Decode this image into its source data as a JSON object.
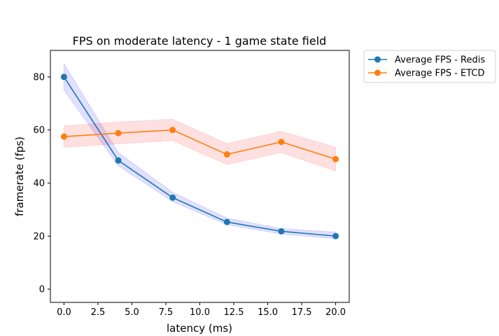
{
  "chart_data": {
    "type": "line",
    "title": "FPS on moderate latency - 1 game state field",
    "xlabel": "latency (ms)",
    "ylabel": "framerate (fps)",
    "xlim": [
      -1,
      21
    ],
    "ylim": [
      -5,
      90
    ],
    "xticks": [
      0.0,
      2.5,
      5.0,
      7.5,
      10.0,
      12.5,
      15.0,
      17.5,
      20.0
    ],
    "xtick_labels": [
      "0.0",
      "2.5",
      "5.0",
      "7.5",
      "10.0",
      "12.5",
      "15.0",
      "17.5",
      "20.0"
    ],
    "yticks": [
      0,
      20,
      40,
      60,
      80
    ],
    "ytick_labels": [
      "0",
      "20",
      "40",
      "60",
      "80"
    ],
    "grid": false,
    "legend_position": "outside-top-right",
    "x": [
      0,
      4,
      8,
      12,
      16,
      20
    ],
    "series": [
      {
        "name": "Average FPS - Redis",
        "color": "#1f77b4",
        "band_color": "#0000ff",
        "values": [
          80.0,
          48.5,
          34.5,
          25.3,
          21.8,
          20.0
        ],
        "lower": [
          75.0,
          46.5,
          33.0,
          24.3,
          20.8,
          19.0
        ],
        "upper": [
          85.0,
          51.5,
          36.5,
          26.8,
          22.8,
          21.5
        ]
      },
      {
        "name": "Average FPS - ETCD",
        "color": "#ff7f0e",
        "band_color": "#ff0000",
        "values": [
          57.5,
          58.8,
          60.0,
          50.8,
          55.5,
          49.0
        ],
        "lower": [
          53.5,
          54.8,
          56.0,
          47.0,
          51.5,
          44.5
        ],
        "upper": [
          61.5,
          63.0,
          64.0,
          54.8,
          59.5,
          53.5
        ]
      }
    ]
  }
}
